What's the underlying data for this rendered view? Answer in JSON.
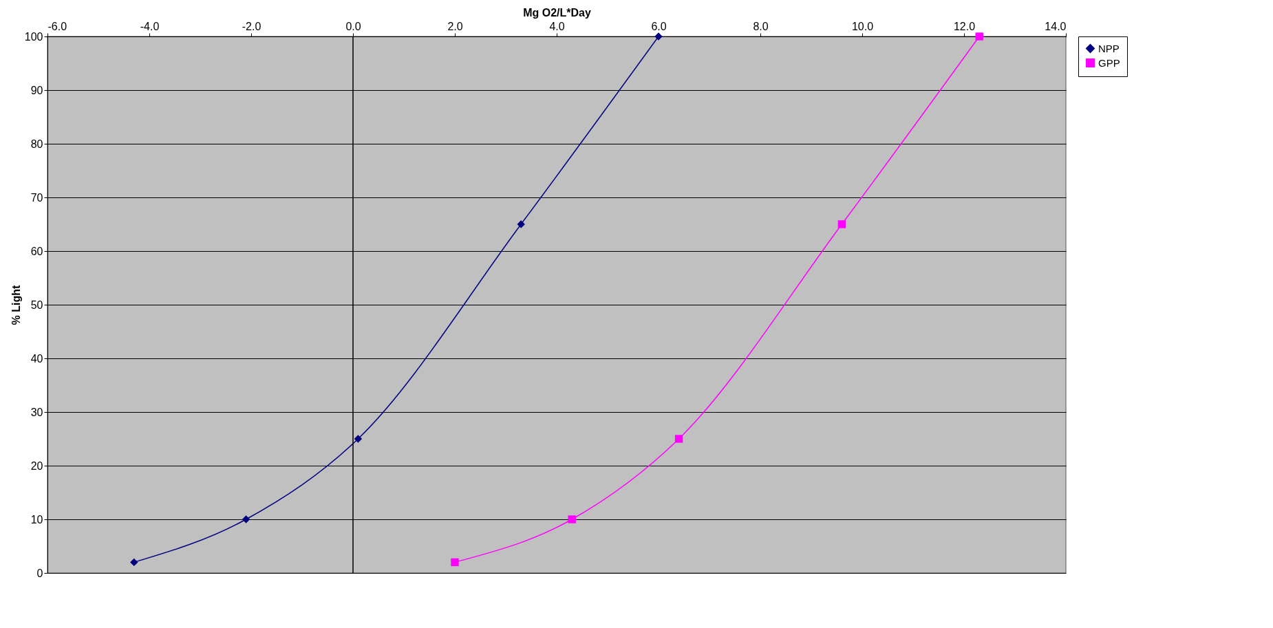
{
  "chart_data": {
    "type": "line",
    "xlabel": "Mg O2/L*Day",
    "ylabel": "% Light",
    "xlim": [
      -6,
      14
    ],
    "xticks": [
      {
        "value": -6,
        "label": "-6.0"
      },
      {
        "value": -4,
        "label": "-4.0"
      },
      {
        "value": -2,
        "label": "-2.0"
      },
      {
        "value": 0,
        "label": "0.0"
      },
      {
        "value": 2,
        "label": "2.0"
      },
      {
        "value": 4,
        "label": "4.0"
      },
      {
        "value": 6,
        "label": "6.0"
      },
      {
        "value": 8,
        "label": "8.0"
      },
      {
        "value": 10,
        "label": "10.0"
      },
      {
        "value": 12,
        "label": "12.0"
      },
      {
        "value": 14,
        "label": "14.0"
      }
    ],
    "ylim": [
      0,
      100
    ],
    "yticks": [
      0,
      10,
      20,
      30,
      40,
      50,
      60,
      70,
      80,
      90,
      100
    ],
    "grid": "y",
    "legend": "right",
    "ref_lines": [
      {
        "axis": "x",
        "value": 0,
        "color": "#000000"
      }
    ],
    "series": [
      {
        "name": "NPP",
        "color": "#000080",
        "marker": "diamond",
        "x": [
          -4.3,
          -2.1,
          0.1,
          3.3,
          6.0
        ],
        "values": [
          2,
          10,
          25,
          65,
          100
        ]
      },
      {
        "name": "GPP",
        "color": "#ff00ff",
        "marker": "square",
        "x": [
          2.0,
          4.3,
          6.4,
          9.6,
          12.3
        ],
        "values": [
          2,
          10,
          25,
          65,
          100
        ]
      }
    ]
  }
}
